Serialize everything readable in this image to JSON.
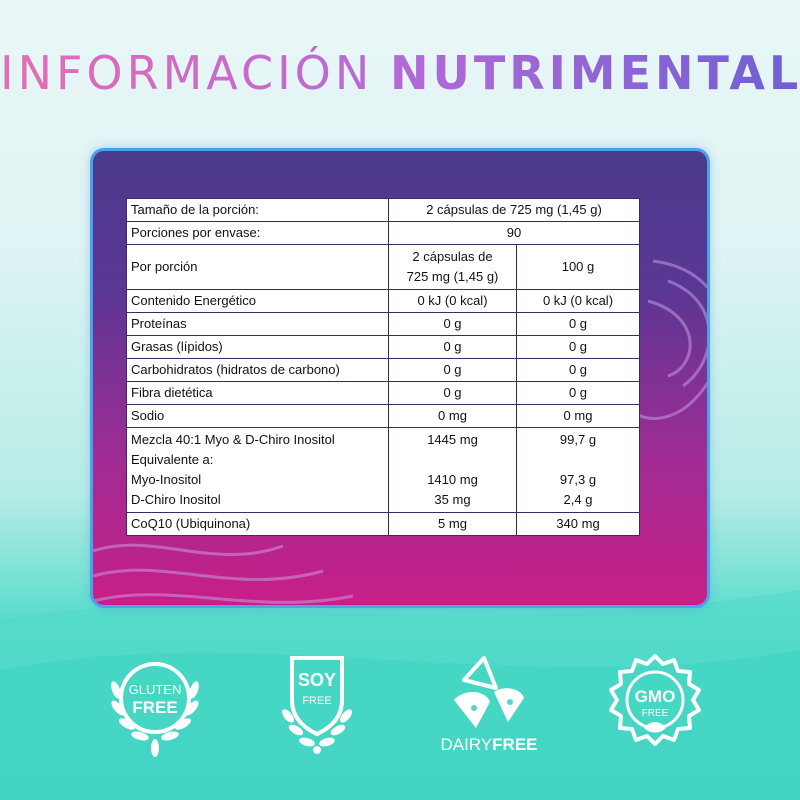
{
  "title": {
    "light": "INFORMACIÓN",
    "bold": "NUTRIMENTAL"
  },
  "table": {
    "serving_label": "Tamaño de la porción:",
    "serving_value": "2 cápsulas de 725 mg (1,45 g)",
    "servings_label": "Porciones por envase:",
    "servings_value": "90",
    "per_portion_label": "Por porción",
    "col1_header_line1": "2 cápsulas de",
    "col1_header_line2": "725 mg (1,45 g)",
    "col2_header": "100 g",
    "rows": [
      {
        "label": "Contenido Energético",
        "v1": "0 kJ (0 kcal)",
        "v2": "0 kJ (0 kcal)"
      },
      {
        "label": "Proteínas",
        "v1": "0 g",
        "v2": "0 g"
      },
      {
        "label": "Grasas (lípidos)",
        "v1": "0 g",
        "v2": "0 g"
      },
      {
        "label": "Carbohidratos (hidratos de carbono)",
        "v1": "0 g",
        "v2": "0 g"
      },
      {
        "label": "Fibra dietética",
        "v1": "0 g",
        "v2": "0 g"
      },
      {
        "label": "Sodio",
        "v1": "0 mg",
        "v2": "0 mg"
      }
    ],
    "blend": {
      "label": "Mezcla 40:1 Myo & D-Chiro Inositol",
      "v1": "1445 mg",
      "v2": "99,7 g",
      "equiv_label": "Equivalente a:",
      "myo_label": "Myo-Inositol",
      "myo_v1": "1410 mg",
      "myo_v2": "97,3 g",
      "dchiro_label": "D-Chiro Inositol",
      "dchiro_v1": "35 mg",
      "dchiro_v2": "2,4 g"
    },
    "coq10": {
      "label": "CoQ10 (Ubiquinona)",
      "v1": "5 mg",
      "v2": "340 mg"
    }
  },
  "badges": {
    "gluten": {
      "line1": "GLUTEN",
      "line2": "FREE",
      "icon": "wheat-laurel-icon"
    },
    "soy": {
      "line1": "SOY",
      "line2": "FREE",
      "icon": "soy-shield-icon"
    },
    "dairy": {
      "light": "DAIRY",
      "bold": "FREE",
      "icon": "cheese-icon"
    },
    "gmo": {
      "line1": "GMO",
      "line2": "FREE",
      "icon": "leaf-seal-icon"
    }
  },
  "colors": {
    "panel_border": "#4aa2ec",
    "panel_top": "#4a3a8c",
    "panel_bottom": "#c81f86",
    "title_pink": "#e56cb5",
    "title_purple": "#6f5fd3"
  }
}
